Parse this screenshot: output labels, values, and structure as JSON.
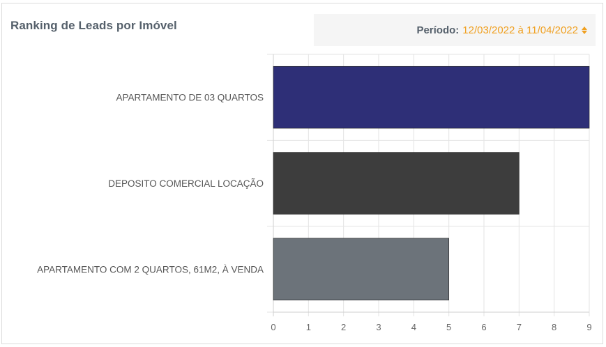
{
  "widget": {
    "title": "Ranking de Leads por Imóvel",
    "period_label": "Período:",
    "period_value": "12/03/2022 à 11/04/2022",
    "period_icon": "sort-arrows-icon",
    "accent_color": "#f0a020"
  },
  "chart_data": {
    "type": "bar",
    "orientation": "horizontal",
    "title": "Ranking de Leads por Imóvel",
    "categories": [
      "APARTAMENTO DE 03 QUARTOS",
      "DEPOSITO COMERCIAL LOCAÇÃO",
      "APARTAMENTO COM 2 QUARTOS, 61M2, À VENDA"
    ],
    "values": [
      9,
      7,
      5
    ],
    "colors": [
      "#2e2f77",
      "#3d3d3d",
      "#6c737a"
    ],
    "xlim": [
      0,
      9
    ],
    "xticks": [
      0,
      1,
      2,
      3,
      4,
      5,
      6,
      7,
      8,
      9
    ],
    "grid": true,
    "legend": "none"
  }
}
